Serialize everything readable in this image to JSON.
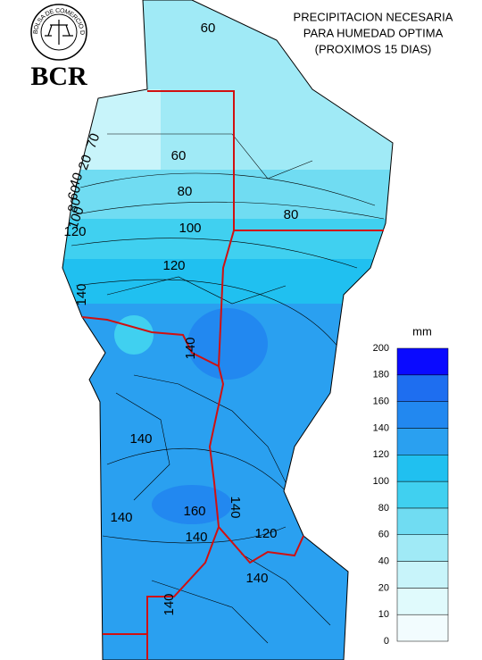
{
  "header": {
    "logo_text": "BOLSA DE COMERCIO DE ROSARIO",
    "brand": "BCR",
    "title_lines": [
      "PRECIPITACION NECESARIA",
      "PARA HUMEDAD OPTIMA",
      "(PROXIMOS 15 DIAS)"
    ]
  },
  "legend": {
    "unit": "mm",
    "ticks": [
      0,
      10,
      20,
      40,
      60,
      80,
      100,
      120,
      140,
      160,
      180,
      200
    ],
    "colors": [
      "#f2fcfe",
      "#e0fafc",
      "#c8f4fa",
      "#a0eaf6",
      "#70dcf2",
      "#40d0f0",
      "#20c0f0",
      "#2aa0f0",
      "#2288f0",
      "#1e6ef0",
      "#0a0aff"
    ]
  },
  "map": {
    "contour_labels": [
      60,
      70,
      20,
      40,
      60,
      80,
      100,
      120,
      60,
      80,
      100,
      120,
      80,
      140,
      140,
      140,
      160,
      140,
      140,
      140,
      120,
      140,
      140
    ]
  }
}
